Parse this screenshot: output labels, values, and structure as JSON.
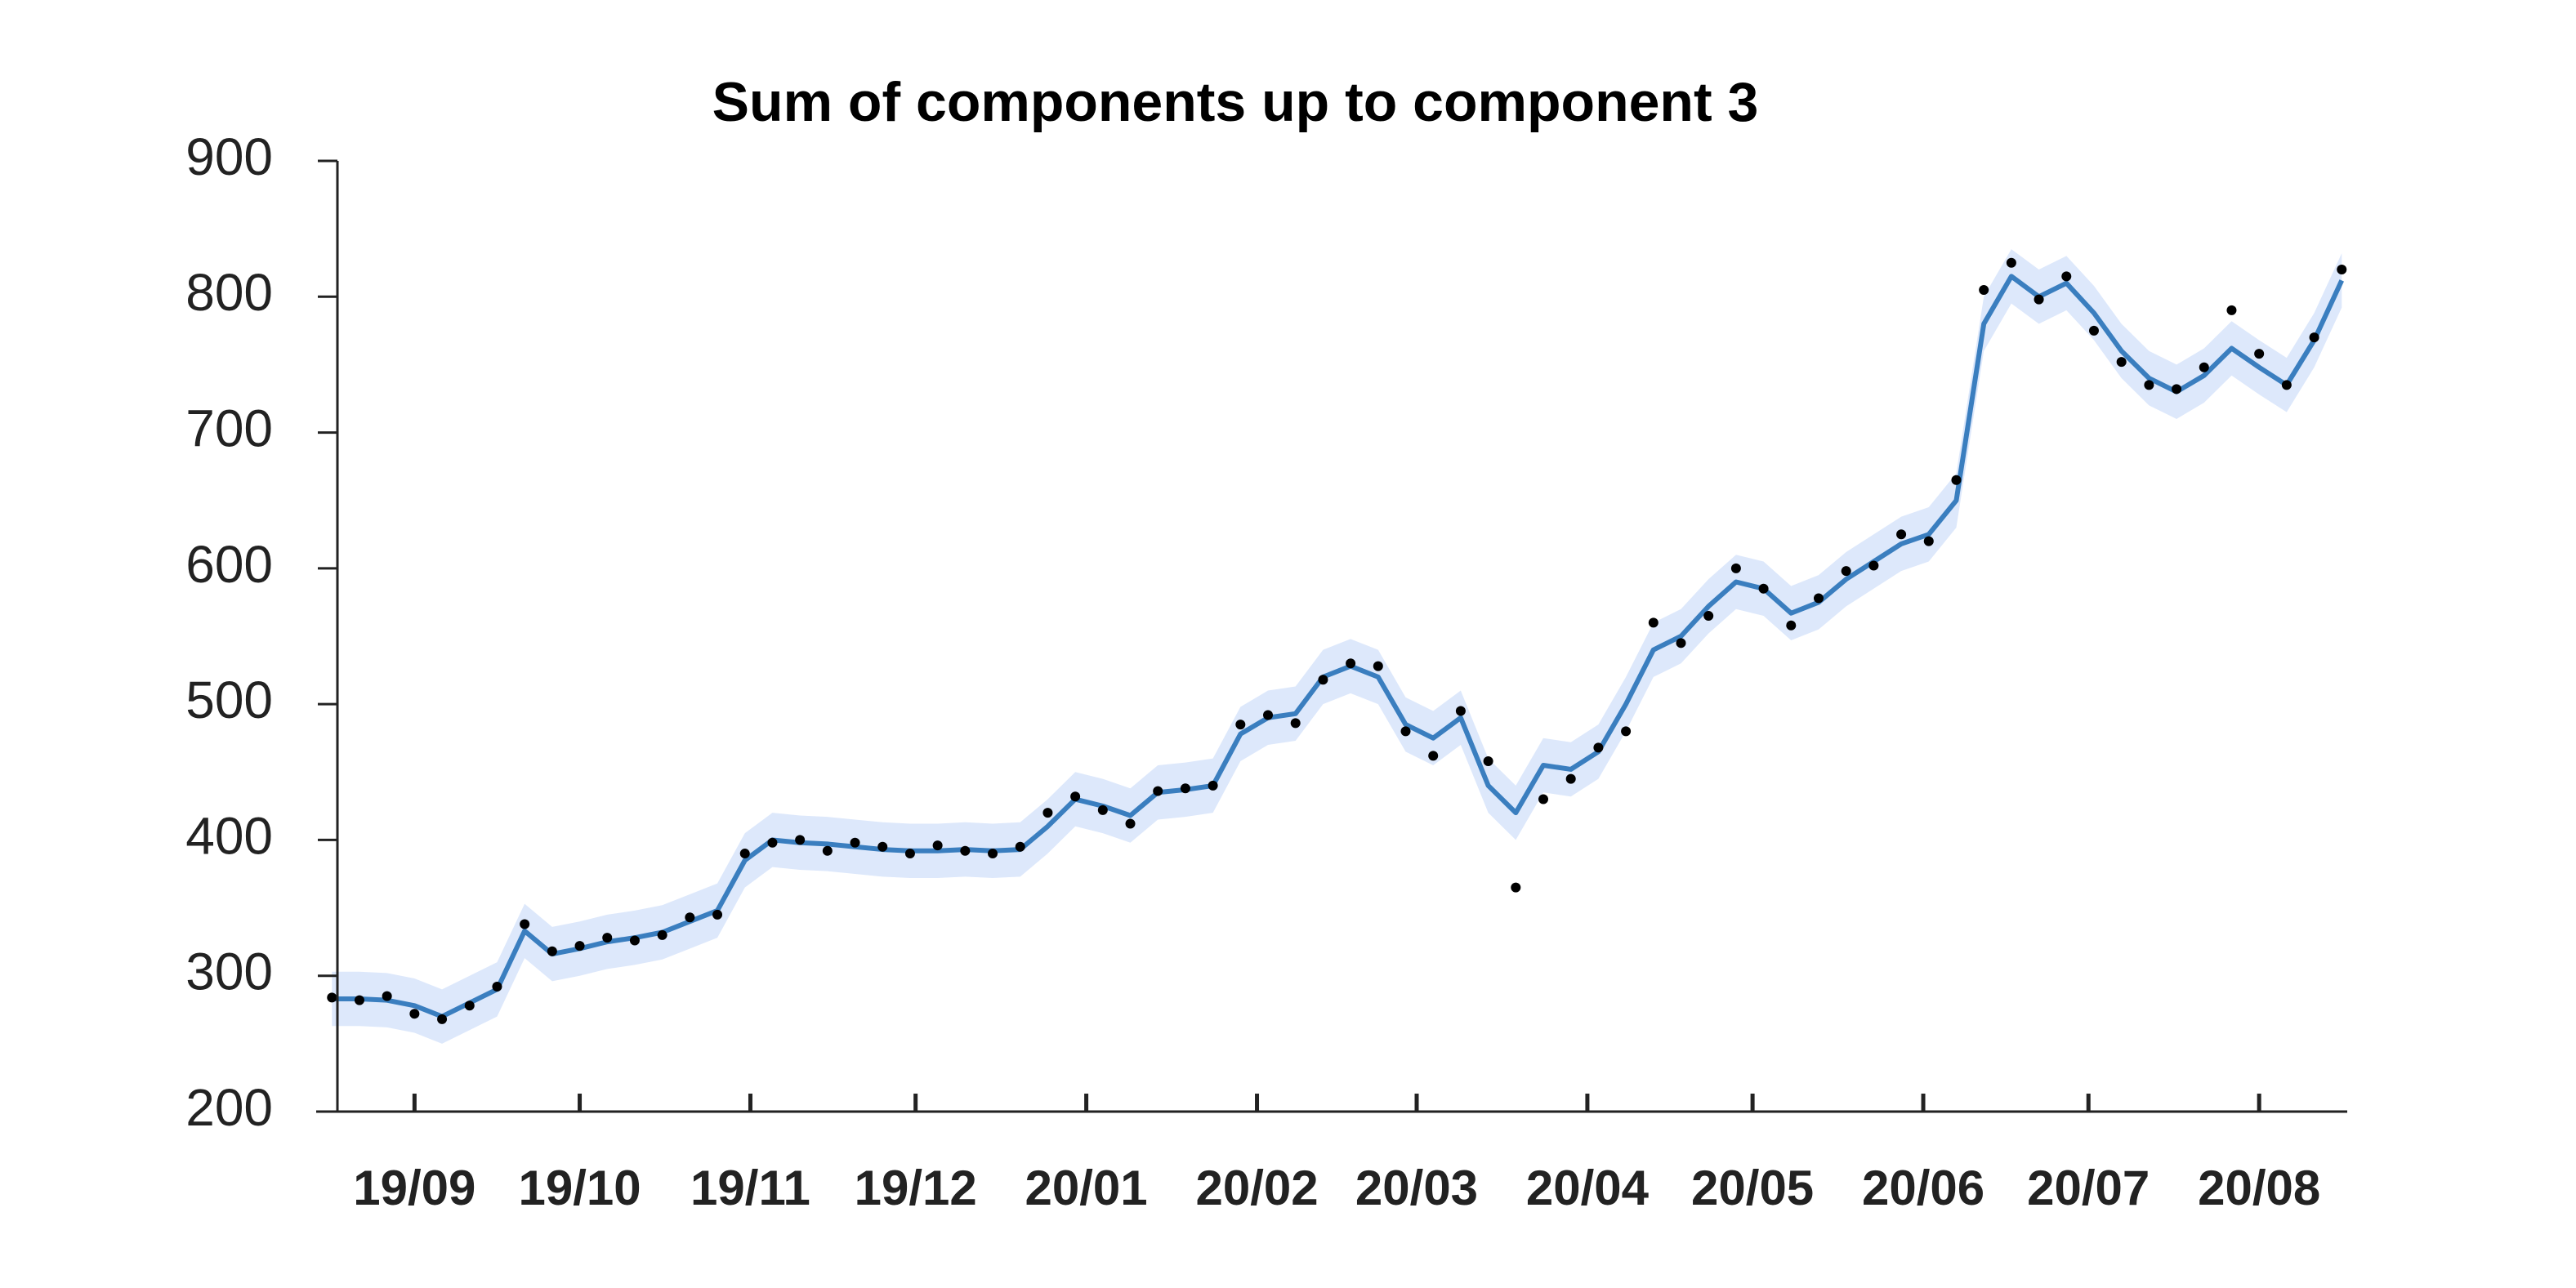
{
  "chart_data": {
    "type": "line",
    "title": "Sum of components up to component 3",
    "x": [
      -15,
      -10,
      -5,
      0,
      5,
      10,
      15,
      20,
      25,
      30,
      35,
      40,
      45,
      50,
      55,
      60,
      65,
      70,
      75,
      80,
      85,
      90,
      95,
      100,
      105,
      110,
      115,
      120,
      125,
      130,
      135,
      140,
      145,
      150,
      155,
      160,
      165,
      170,
      175,
      180,
      185,
      190,
      195,
      200,
      205,
      210,
      215,
      220,
      225,
      230,
      235,
      240,
      245,
      250,
      255,
      260,
      265,
      270,
      275,
      280,
      285,
      290,
      295,
      300,
      305,
      310,
      315,
      320,
      325,
      330,
      335,
      340,
      345,
      350
    ],
    "fit": {
      "color": "#3a7ebf",
      "values": [
        283,
        283,
        282,
        278,
        270,
        280,
        290,
        333,
        316,
        320,
        325,
        328,
        332,
        340,
        348,
        385,
        400,
        398,
        397,
        395,
        393,
        392,
        392,
        393,
        392,
        393,
        410,
        430,
        425,
        418,
        435,
        437,
        440,
        478,
        490,
        493,
        520,
        528,
        520,
        485,
        475,
        490,
        440,
        420,
        455,
        452,
        465,
        500,
        540,
        550,
        572,
        590,
        585,
        567,
        575,
        592,
        605,
        618,
        625,
        650,
        780,
        815,
        800,
        810,
        788,
        760,
        740,
        730,
        742,
        762,
        748,
        735,
        768,
        812
      ]
    },
    "band": {
      "color": "#dde8fb",
      "lower": [
        263,
        263,
        262,
        258,
        250,
        260,
        270,
        313,
        296,
        300,
        305,
        308,
        312,
        320,
        328,
        365,
        380,
        378,
        377,
        375,
        373,
        372,
        372,
        373,
        372,
        373,
        390,
        410,
        405,
        398,
        415,
        417,
        420,
        458,
        470,
        473,
        500,
        508,
        500,
        465,
        455,
        470,
        420,
        400,
        435,
        432,
        445,
        480,
        520,
        530,
        552,
        570,
        565,
        547,
        555,
        572,
        585,
        598,
        605,
        630,
        760,
        795,
        780,
        790,
        768,
        740,
        720,
        710,
        722,
        742,
        728,
        715,
        748,
        792
      ],
      "upper": [
        303,
        303,
        302,
        298,
        290,
        300,
        310,
        353,
        336,
        340,
        345,
        348,
        352,
        360,
        368,
        405,
        420,
        418,
        417,
        415,
        413,
        412,
        412,
        413,
        412,
        413,
        430,
        450,
        445,
        438,
        455,
        457,
        460,
        498,
        510,
        513,
        540,
        548,
        540,
        505,
        495,
        510,
        460,
        440,
        475,
        472,
        485,
        520,
        560,
        570,
        592,
        610,
        605,
        587,
        595,
        612,
        625,
        638,
        645,
        670,
        800,
        835,
        820,
        830,
        808,
        780,
        760,
        750,
        762,
        782,
        768,
        755,
        788,
        832
      ]
    },
    "points": {
      "color": "#000000",
      "values": [
        284,
        282,
        285,
        272,
        268,
        278,
        292,
        338,
        318,
        322,
        328,
        326,
        330,
        343,
        345,
        390,
        398,
        400,
        392,
        398,
        395,
        390,
        396,
        392,
        390,
        395,
        420,
        432,
        422,
        412,
        436,
        438,
        440,
        485,
        492,
        486,
        518,
        530,
        528,
        480,
        462,
        495,
        458,
        365,
        430,
        445,
        468,
        480,
        560,
        545,
        565,
        600,
        585,
        558,
        578,
        598,
        602,
        625,
        620,
        665,
        805,
        825,
        798,
        815,
        775,
        752,
        735,
        732,
        748,
        790,
        758,
        735,
        770,
        820
      ]
    },
    "xlim": [
      -14,
      351
    ],
    "xticks": [
      {
        "value": 0,
        "label": "19/09"
      },
      {
        "value": 30,
        "label": "19/10"
      },
      {
        "value": 61,
        "label": "19/11"
      },
      {
        "value": 91,
        "label": "19/12"
      },
      {
        "value": 122,
        "label": "20/01"
      },
      {
        "value": 153,
        "label": "20/02"
      },
      {
        "value": 182,
        "label": "20/03"
      },
      {
        "value": 213,
        "label": "20/04"
      },
      {
        "value": 243,
        "label": "20/05"
      },
      {
        "value": 274,
        "label": "20/06"
      },
      {
        "value": 304,
        "label": "20/07"
      },
      {
        "value": 335,
        "label": "20/08"
      }
    ],
    "ylim": [
      200,
      900
    ],
    "yticks": [
      200,
      300,
      400,
      500,
      600,
      700,
      800,
      900
    ]
  }
}
